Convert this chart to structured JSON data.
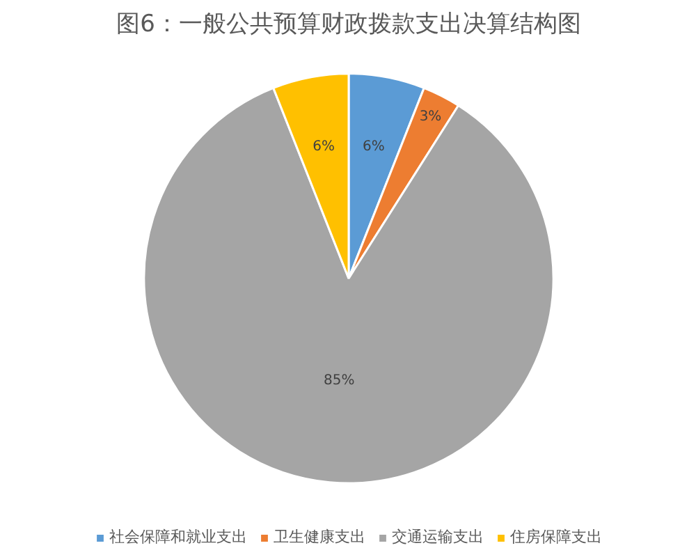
{
  "chart_data": {
    "type": "pie",
    "title": "图6：一般公共预算财政拨款支出决算结构图",
    "categories": [
      "社会保障和就业支出",
      "卫生健康支出",
      "交通运输支出",
      "住房保障支出"
    ],
    "values": [
      6,
      3,
      85,
      6
    ],
    "colors": [
      "#5b9bd5",
      "#ed7d31",
      "#a5a5a5",
      "#ffc000"
    ],
    "value_labels": [
      "6%",
      "3%",
      "85%",
      "6%"
    ],
    "legend": "bottom"
  }
}
